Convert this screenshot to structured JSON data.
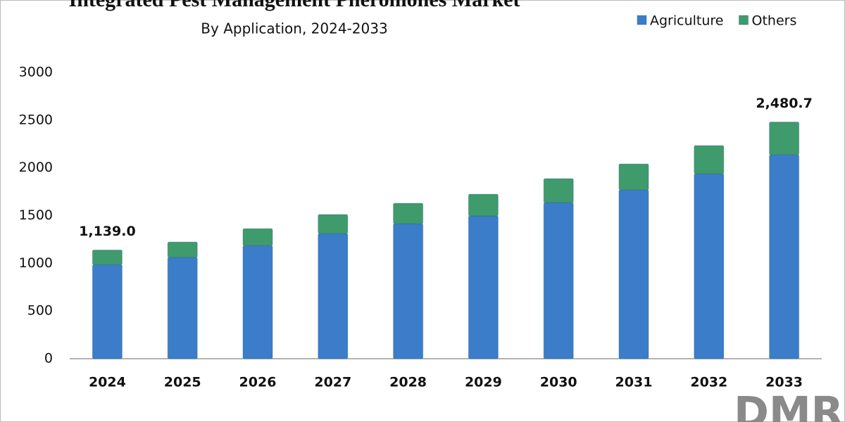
{
  "chart_data": {
    "type": "stacked_bar",
    "title": "Integrated Pest Management Pheromones Market",
    "subtitle": "By Application, 2024-2033",
    "categories": [
      "2024",
      "2025",
      "2026",
      "2027",
      "2028",
      "2029",
      "2030",
      "2031",
      "2032",
      "2033"
    ],
    "series": [
      {
        "name": "Agriculture",
        "color": "#3b7dc8",
        "values": [
          987,
          1061,
          1186,
          1312,
          1415,
          1496,
          1636,
          1769,
          1938,
          2137
        ]
      },
      {
        "name": "Others",
        "color": "#3f9b6b",
        "values": [
          152,
          162,
          177,
          199,
          214,
          228,
          251,
          272,
          295,
          343.7
        ]
      }
    ],
    "annotations": [
      {
        "category": "2024",
        "value": 1139.0,
        "label": "1,139.0"
      },
      {
        "category": "2033",
        "value": 2480.7,
        "label": "2,480.7"
      }
    ],
    "ylim": [
      0,
      3000
    ],
    "yticks": [
      0,
      500,
      1000,
      1500,
      2000,
      2500,
      3000
    ],
    "legend": "top-right",
    "logo": "DMR"
  }
}
